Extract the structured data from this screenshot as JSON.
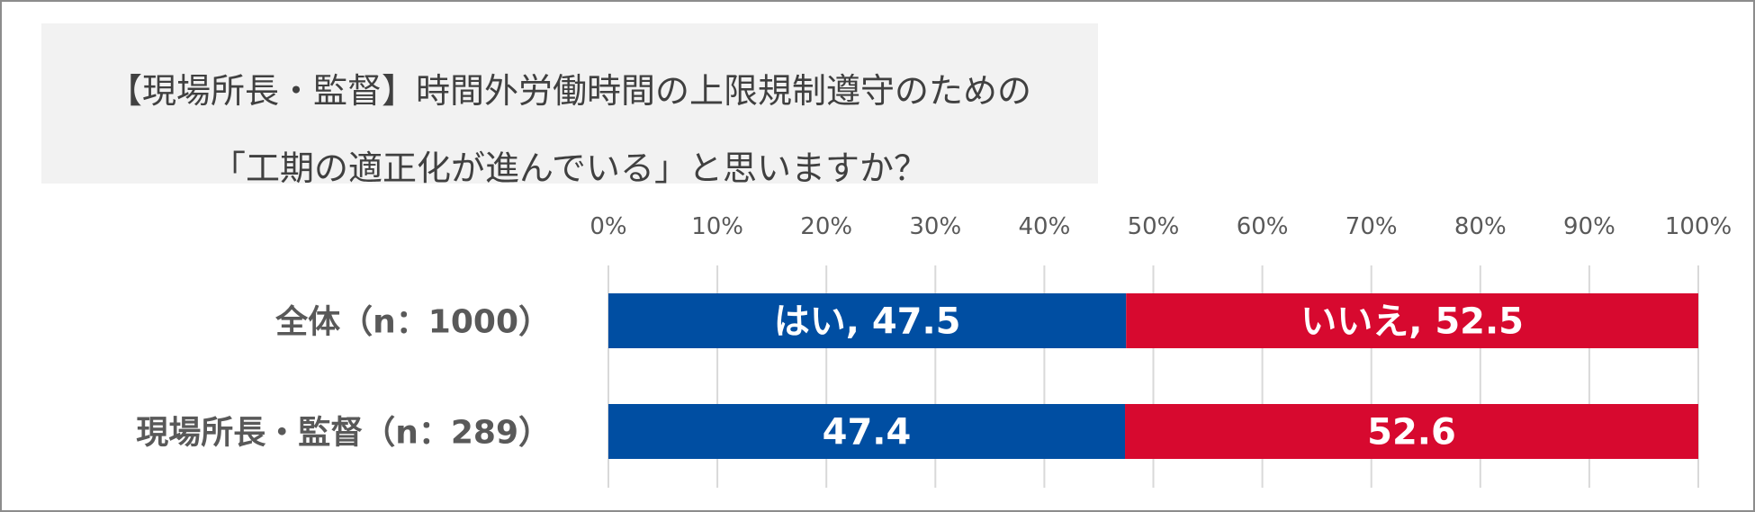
{
  "title": {
    "line1": "【現場所長・監督】時間外労働時間の上限規制遵守のための",
    "line2": "「工期の適正化が進んでいる」と思いますか？"
  },
  "chart_data": {
    "type": "bar",
    "orientation": "horizontal",
    "stacked": true,
    "categories": [
      "全体（n：1000）",
      "現場所長・監督（n：289）"
    ],
    "series": [
      {
        "name": "はい",
        "color": "#004ea2",
        "values": [
          47.5,
          47.4
        ],
        "labels": [
          "はい, 47.5",
          "47.4"
        ]
      },
      {
        "name": "いいえ",
        "color": "#d7092f",
        "values": [
          52.5,
          52.6
        ],
        "labels": [
          "いいえ, 52.5",
          "52.6"
        ]
      }
    ],
    "xlim": [
      0,
      100
    ],
    "ticks": [
      "0%",
      "10%",
      "20%",
      "30%",
      "40%",
      "50%",
      "60%",
      "70%",
      "80%",
      "90%",
      "100%"
    ],
    "tick_values": [
      0,
      10,
      20,
      30,
      40,
      50,
      60,
      70,
      80,
      90,
      100
    ],
    "grid": true,
    "axis_position": "top",
    "legend": "none"
  }
}
